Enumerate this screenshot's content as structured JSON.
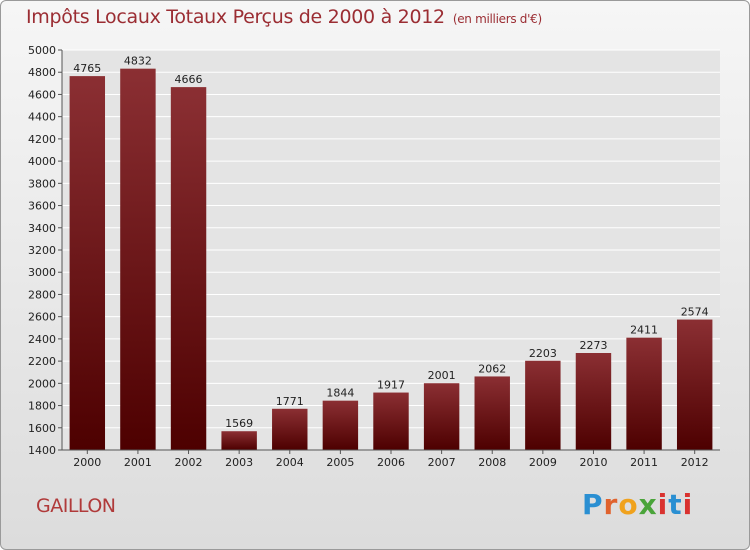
{
  "header": {
    "title": "Impôts Locaux Totaux Perçus de 2000 à 2012",
    "unit": "(en milliers d'€)"
  },
  "footer": {
    "town": "GAILLON",
    "logo": "Proxiti"
  },
  "colors": {
    "bar_top": "#8b2f33",
    "bar_bottom": "#4d0000",
    "title": "#9b2d33"
  },
  "chart_data": {
    "type": "bar",
    "title": "Impôts Locaux Totaux Perçus de 2000 à 2012",
    "subtitle": "(en milliers d'€)",
    "categories": [
      "2000",
      "2001",
      "2002",
      "2003",
      "2004",
      "2005",
      "2006",
      "2007",
      "2008",
      "2009",
      "2010",
      "2011",
      "2012"
    ],
    "values": [
      4765,
      4832,
      4666,
      1569,
      1771,
      1844,
      1917,
      2001,
      2062,
      2203,
      2273,
      2411,
      2574
    ],
    "ylim": [
      1400,
      5000
    ],
    "yticks": [
      1400,
      1600,
      1800,
      2000,
      2200,
      2400,
      2600,
      2800,
      3000,
      3200,
      3400,
      3600,
      3800,
      4000,
      4200,
      4400,
      4600,
      4800,
      5000
    ],
    "grid": true,
    "xlabel": "",
    "ylabel": ""
  }
}
